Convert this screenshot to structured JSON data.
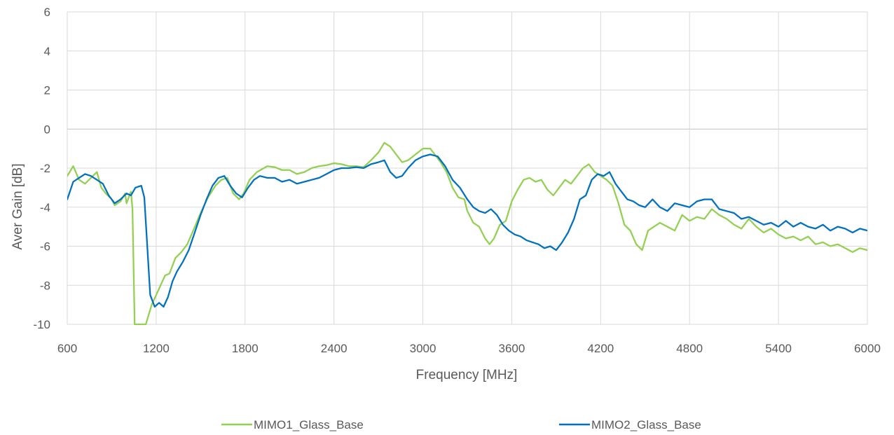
{
  "chart_data": {
    "type": "line",
    "title": "",
    "xlabel": "Frequency [MHz]",
    "ylabel": "Aver Gain [dB]",
    "xlim": [
      600,
      6000
    ],
    "ylim": [
      -10,
      6
    ],
    "xticks": [
      600,
      1200,
      1800,
      2400,
      3000,
      3600,
      4200,
      4800,
      5400,
      6000
    ],
    "yticks": [
      6,
      4,
      2,
      0,
      -2,
      -4,
      -6,
      -8,
      -10
    ],
    "grid": true,
    "legend_position": "bottom",
    "series": [
      {
        "name": "MIMO1_Glass_Base",
        "color": "#92D050",
        "points": [
          [
            600,
            -2.4
          ],
          [
            640,
            -1.9
          ],
          [
            680,
            -2.6
          ],
          [
            720,
            -2.8
          ],
          [
            760,
            -2.5
          ],
          [
            800,
            -2.2
          ],
          [
            830,
            -3.0
          ],
          [
            860,
            -3.3
          ],
          [
            900,
            -3.6
          ],
          [
            920,
            -3.9
          ],
          [
            960,
            -3.7
          ],
          [
            990,
            -3.3
          ],
          [
            1000,
            -3.8
          ],
          [
            1030,
            -3.2
          ],
          [
            1040,
            -4.1
          ],
          [
            1055,
            -10
          ],
          [
            1080,
            -10
          ],
          [
            1100,
            -10
          ],
          [
            1130,
            -10
          ],
          [
            1150,
            -9.5
          ],
          [
            1170,
            -9.0
          ],
          [
            1200,
            -8.5
          ],
          [
            1230,
            -8.0
          ],
          [
            1260,
            -7.5
          ],
          [
            1290,
            -7.4
          ],
          [
            1330,
            -6.6
          ],
          [
            1370,
            -6.3
          ],
          [
            1410,
            -5.9
          ],
          [
            1450,
            -5.2
          ],
          [
            1500,
            -4.3
          ],
          [
            1550,
            -3.5
          ],
          [
            1600,
            -2.9
          ],
          [
            1640,
            -2.6
          ],
          [
            1680,
            -2.5
          ],
          [
            1720,
            -3.3
          ],
          [
            1760,
            -3.6
          ],
          [
            1790,
            -3.3
          ],
          [
            1830,
            -2.6
          ],
          [
            1880,
            -2.2
          ],
          [
            1950,
            -1.9
          ],
          [
            2000,
            -1.95
          ],
          [
            2050,
            -2.1
          ],
          [
            2100,
            -2.1
          ],
          [
            2150,
            -2.3
          ],
          [
            2200,
            -2.2
          ],
          [
            2250,
            -2.0
          ],
          [
            2300,
            -1.9
          ],
          [
            2350,
            -1.85
          ],
          [
            2400,
            -1.75
          ],
          [
            2450,
            -1.8
          ],
          [
            2500,
            -1.9
          ],
          [
            2550,
            -1.9
          ],
          [
            2600,
            -1.95
          ],
          [
            2650,
            -1.6
          ],
          [
            2700,
            -1.2
          ],
          [
            2740,
            -0.7
          ],
          [
            2780,
            -0.9
          ],
          [
            2820,
            -1.3
          ],
          [
            2860,
            -1.7
          ],
          [
            2900,
            -1.6
          ],
          [
            2950,
            -1.3
          ],
          [
            3000,
            -1.0
          ],
          [
            3050,
            -1.0
          ],
          [
            3080,
            -1.3
          ],
          [
            3120,
            -1.7
          ],
          [
            3160,
            -2.2
          ],
          [
            3200,
            -3.0
          ],
          [
            3240,
            -3.5
          ],
          [
            3280,
            -3.6
          ],
          [
            3300,
            -4.2
          ],
          [
            3340,
            -4.8
          ],
          [
            3380,
            -5.0
          ],
          [
            3420,
            -5.6
          ],
          [
            3450,
            -5.9
          ],
          [
            3480,
            -5.6
          ],
          [
            3520,
            -4.9
          ],
          [
            3560,
            -4.7
          ],
          [
            3600,
            -3.7
          ],
          [
            3640,
            -3.1
          ],
          [
            3680,
            -2.6
          ],
          [
            3720,
            -2.5
          ],
          [
            3760,
            -2.7
          ],
          [
            3800,
            -2.6
          ],
          [
            3840,
            -3.1
          ],
          [
            3880,
            -3.4
          ],
          [
            3920,
            -3.0
          ],
          [
            3960,
            -2.6
          ],
          [
            4000,
            -2.8
          ],
          [
            4040,
            -2.4
          ],
          [
            4080,
            -2.0
          ],
          [
            4120,
            -1.8
          ],
          [
            4160,
            -2.2
          ],
          [
            4200,
            -2.4
          ],
          [
            4240,
            -2.6
          ],
          [
            4280,
            -2.9
          ],
          [
            4320,
            -3.8
          ],
          [
            4360,
            -4.9
          ],
          [
            4400,
            -5.2
          ],
          [
            4440,
            -5.9
          ],
          [
            4480,
            -6.2
          ],
          [
            4520,
            -5.2
          ],
          [
            4560,
            -5.0
          ],
          [
            4600,
            -4.8
          ],
          [
            4650,
            -5.0
          ],
          [
            4700,
            -5.2
          ],
          [
            4750,
            -4.4
          ],
          [
            4800,
            -4.7
          ],
          [
            4850,
            -4.5
          ],
          [
            4900,
            -4.6
          ],
          [
            4950,
            -4.1
          ],
          [
            5000,
            -4.4
          ],
          [
            5050,
            -4.6
          ],
          [
            5100,
            -4.9
          ],
          [
            5150,
            -5.1
          ],
          [
            5200,
            -4.6
          ],
          [
            5250,
            -5.0
          ],
          [
            5300,
            -5.3
          ],
          [
            5350,
            -5.1
          ],
          [
            5400,
            -5.4
          ],
          [
            5450,
            -5.6
          ],
          [
            5500,
            -5.5
          ],
          [
            5550,
            -5.7
          ],
          [
            5600,
            -5.5
          ],
          [
            5650,
            -5.9
          ],
          [
            5700,
            -5.8
          ],
          [
            5750,
            -6.0
          ],
          [
            5800,
            -5.9
          ],
          [
            5850,
            -6.1
          ],
          [
            5900,
            -6.3
          ],
          [
            5950,
            -6.1
          ],
          [
            6000,
            -6.2
          ]
        ]
      },
      {
        "name": "MIMO2_Glass_Base",
        "color": "#0070C0",
        "points": [
          [
            600,
            -3.6
          ],
          [
            640,
            -2.7
          ],
          [
            680,
            -2.5
          ],
          [
            720,
            -2.3
          ],
          [
            760,
            -2.4
          ],
          [
            800,
            -2.6
          ],
          [
            840,
            -2.8
          ],
          [
            880,
            -3.4
          ],
          [
            920,
            -3.8
          ],
          [
            960,
            -3.6
          ],
          [
            1000,
            -3.3
          ],
          [
            1030,
            -3.4
          ],
          [
            1060,
            -3.0
          ],
          [
            1100,
            -2.9
          ],
          [
            1120,
            -3.5
          ],
          [
            1140,
            -6.0
          ],
          [
            1160,
            -8.5
          ],
          [
            1190,
            -9.1
          ],
          [
            1220,
            -8.9
          ],
          [
            1250,
            -9.1
          ],
          [
            1280,
            -8.6
          ],
          [
            1310,
            -7.8
          ],
          [
            1340,
            -7.3
          ],
          [
            1380,
            -6.8
          ],
          [
            1420,
            -6.2
          ],
          [
            1460,
            -5.3
          ],
          [
            1500,
            -4.4
          ],
          [
            1540,
            -3.6
          ],
          [
            1580,
            -2.9
          ],
          [
            1620,
            -2.5
          ],
          [
            1660,
            -2.4
          ],
          [
            1700,
            -2.9
          ],
          [
            1740,
            -3.3
          ],
          [
            1780,
            -3.5
          ],
          [
            1820,
            -3.0
          ],
          [
            1860,
            -2.6
          ],
          [
            1900,
            -2.4
          ],
          [
            1950,
            -2.5
          ],
          [
            2000,
            -2.5
          ],
          [
            2050,
            -2.7
          ],
          [
            2100,
            -2.6
          ],
          [
            2150,
            -2.8
          ],
          [
            2200,
            -2.7
          ],
          [
            2250,
            -2.6
          ],
          [
            2300,
            -2.5
          ],
          [
            2350,
            -2.3
          ],
          [
            2400,
            -2.1
          ],
          [
            2450,
            -2.0
          ],
          [
            2500,
            -2.0
          ],
          [
            2550,
            -1.95
          ],
          [
            2600,
            -2.0
          ],
          [
            2650,
            -1.8
          ],
          [
            2700,
            -1.7
          ],
          [
            2740,
            -1.6
          ],
          [
            2780,
            -2.2
          ],
          [
            2820,
            -2.5
          ],
          [
            2860,
            -2.4
          ],
          [
            2900,
            -2.0
          ],
          [
            2950,
            -1.6
          ],
          [
            3000,
            -1.4
          ],
          [
            3050,
            -1.3
          ],
          [
            3100,
            -1.4
          ],
          [
            3150,
            -1.9
          ],
          [
            3200,
            -2.6
          ],
          [
            3250,
            -3.0
          ],
          [
            3300,
            -3.6
          ],
          [
            3340,
            -4.0
          ],
          [
            3380,
            -4.2
          ],
          [
            3420,
            -4.3
          ],
          [
            3460,
            -4.1
          ],
          [
            3500,
            -4.4
          ],
          [
            3540,
            -4.9
          ],
          [
            3580,
            -5.2
          ],
          [
            3620,
            -5.4
          ],
          [
            3660,
            -5.5
          ],
          [
            3700,
            -5.7
          ],
          [
            3740,
            -5.8
          ],
          [
            3780,
            -5.9
          ],
          [
            3820,
            -6.1
          ],
          [
            3860,
            -6.0
          ],
          [
            3900,
            -6.2
          ],
          [
            3940,
            -5.8
          ],
          [
            3980,
            -5.3
          ],
          [
            4020,
            -4.6
          ],
          [
            4060,
            -3.6
          ],
          [
            4100,
            -3.4
          ],
          [
            4140,
            -2.6
          ],
          [
            4180,
            -2.3
          ],
          [
            4220,
            -2.4
          ],
          [
            4260,
            -2.2
          ],
          [
            4300,
            -2.8
          ],
          [
            4340,
            -3.2
          ],
          [
            4380,
            -3.6
          ],
          [
            4420,
            -3.7
          ],
          [
            4460,
            -3.9
          ],
          [
            4500,
            -4.0
          ],
          [
            4550,
            -3.6
          ],
          [
            4600,
            -4.0
          ],
          [
            4650,
            -4.2
          ],
          [
            4700,
            -3.8
          ],
          [
            4750,
            -3.9
          ],
          [
            4800,
            -4.0
          ],
          [
            4850,
            -3.7
          ],
          [
            4900,
            -3.6
          ],
          [
            4950,
            -3.6
          ],
          [
            5000,
            -4.1
          ],
          [
            5050,
            -4.2
          ],
          [
            5100,
            -4.3
          ],
          [
            5150,
            -4.6
          ],
          [
            5200,
            -4.5
          ],
          [
            5250,
            -4.7
          ],
          [
            5300,
            -4.9
          ],
          [
            5350,
            -4.8
          ],
          [
            5400,
            -5.0
          ],
          [
            5450,
            -4.7
          ],
          [
            5500,
            -5.0
          ],
          [
            5550,
            -4.8
          ],
          [
            5600,
            -5.0
          ],
          [
            5650,
            -5.1
          ],
          [
            5700,
            -4.9
          ],
          [
            5750,
            -5.2
          ],
          [
            5800,
            -5.0
          ],
          [
            5850,
            -5.1
          ],
          [
            5900,
            -5.3
          ],
          [
            5950,
            -5.1
          ],
          [
            6000,
            -5.2
          ]
        ]
      }
    ]
  }
}
